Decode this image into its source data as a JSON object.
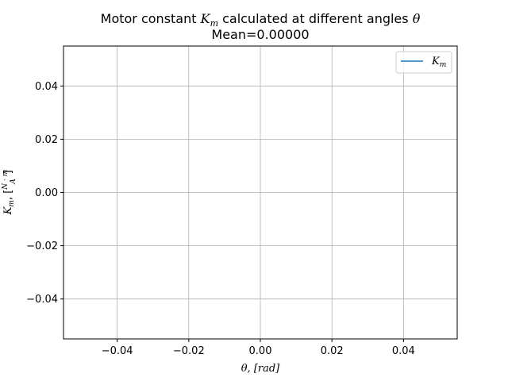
{
  "chart_data": {
    "type": "line",
    "title_line1_prefix": "Motor constant ",
    "title_line1_math": "K",
    "title_line1_math_sub": "m",
    "title_line1_suffix": " calculated at different angles ",
    "title_line1_theta": "θ",
    "title_line2": "Mean=0.00000",
    "xlabel_math": "θ, [rad]",
    "ylabel_math": "K",
    "ylabel_sub": "m",
    "ylabel_sep": ", [",
    "ylabel_num": "N · m",
    "ylabel_den": "A",
    "ylabel_close": "]",
    "xlim": [
      -0.055,
      0.055
    ],
    "ylim": [
      -0.055,
      0.055
    ],
    "xticks": [
      -0.04,
      -0.02,
      0.0,
      0.02,
      0.04
    ],
    "xtick_labels": [
      "−0.04",
      "−0.02",
      "0.00",
      "0.02",
      "0.04"
    ],
    "yticks": [
      -0.04,
      -0.02,
      0.0,
      0.02,
      0.04
    ],
    "ytick_labels": [
      "−0.04",
      "−0.02",
      "0.00",
      "0.02",
      "0.04"
    ],
    "grid": true,
    "legend_position": "upper right",
    "series": [
      {
        "name_math": "K",
        "name_sub": "m",
        "color": "#1f77b4",
        "x": [],
        "y": []
      }
    ]
  }
}
